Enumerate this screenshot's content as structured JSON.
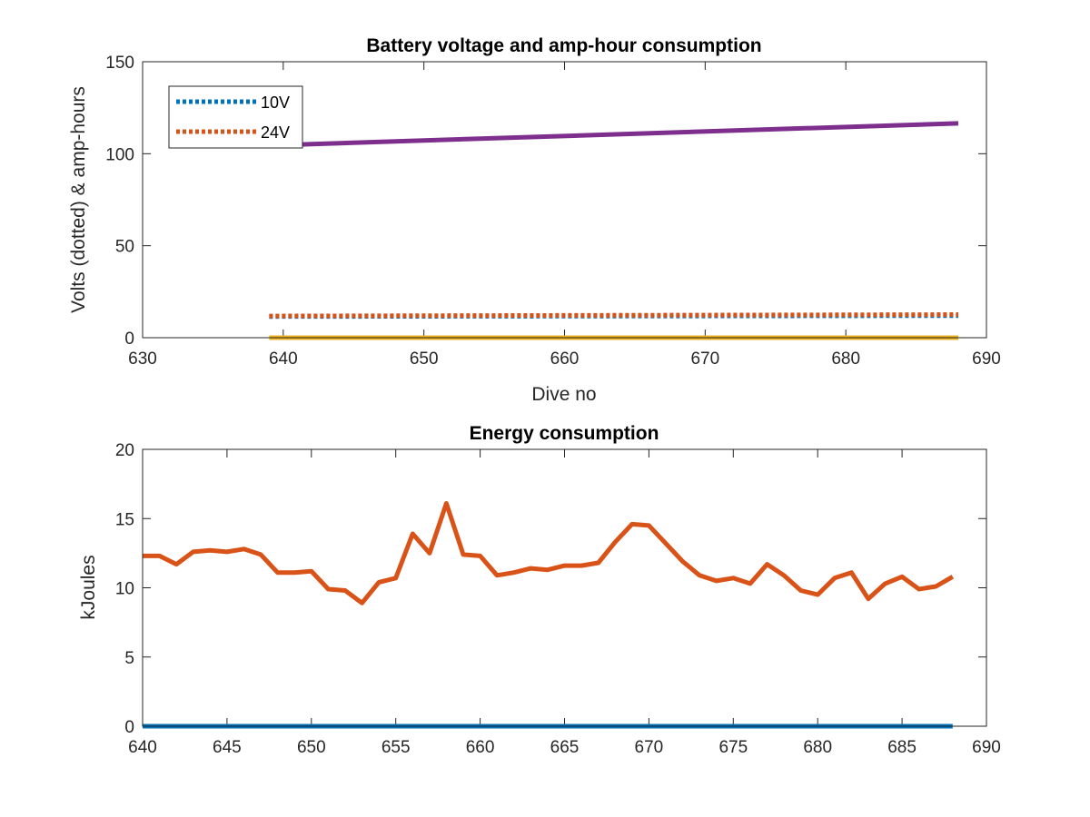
{
  "chart_data": [
    {
      "type": "line",
      "title": "Battery voltage and amp-hour consumption",
      "xlabel": "Dive no",
      "ylabel": "Volts (dotted) & amp-hours",
      "xlim": [
        630,
        690
      ],
      "ylim": [
        0,
        150
      ],
      "xticks": [
        630,
        640,
        650,
        660,
        670,
        680,
        690
      ],
      "yticks": [
        0,
        50,
        100,
        150
      ],
      "legend": {
        "position": "top-left",
        "entries": [
          "10V",
          "24V"
        ]
      },
      "series": [
        {
          "name": "10V",
          "color": "#0072BD",
          "style": "dotted",
          "x": [
            639,
            688
          ],
          "y": [
            11.5,
            12.0
          ]
        },
        {
          "name": "24V",
          "color": "#D95319",
          "style": "dotted",
          "x": [
            639,
            688
          ],
          "y": [
            11.8,
            12.6
          ]
        },
        {
          "color": "#EDB120",
          "style": "solid",
          "x": [
            639,
            688
          ],
          "y": [
            0,
            0
          ]
        },
        {
          "color": "#7E2F8E",
          "style": "solid",
          "x": [
            639,
            688
          ],
          "y": [
            104.5,
            116.5
          ]
        }
      ]
    },
    {
      "type": "line",
      "title": "Energy consumption",
      "xlabel": "",
      "ylabel": "kJoules",
      "xlim": [
        640,
        690
      ],
      "ylim": [
        0,
        20
      ],
      "xticks": [
        640,
        645,
        650,
        655,
        660,
        665,
        670,
        675,
        680,
        685,
        690
      ],
      "yticks": [
        0,
        5,
        10,
        15,
        20
      ],
      "series": [
        {
          "color": "#0072BD",
          "style": "solid",
          "x": [
            640,
            688
          ],
          "y": [
            0,
            0
          ]
        },
        {
          "color": "#D95319",
          "style": "solid",
          "x": [
            640,
            641,
            642,
            643,
            644,
            645,
            646,
            647,
            648,
            649,
            650,
            651,
            652,
            653,
            654,
            655,
            656,
            657,
            658,
            659,
            660,
            661,
            662,
            663,
            664,
            665,
            666,
            667,
            668,
            669,
            670,
            671,
            672,
            673,
            674,
            675,
            676,
            677,
            678,
            679,
            680,
            681,
            682,
            683,
            684,
            685,
            686,
            687,
            688
          ],
          "y": [
            12.3,
            12.3,
            11.7,
            12.6,
            12.7,
            12.6,
            12.8,
            12.4,
            11.1,
            11.1,
            11.2,
            9.9,
            9.8,
            8.9,
            10.4,
            10.7,
            13.9,
            12.5,
            16.1,
            12.4,
            12.3,
            10.9,
            11.1,
            11.4,
            11.3,
            11.6,
            11.6,
            11.8,
            13.3,
            14.6,
            14.5,
            13.2,
            11.9,
            10.9,
            10.5,
            10.7,
            10.3,
            11.7,
            10.9,
            9.8,
            9.5,
            10.7,
            11.1,
            9.2,
            10.3,
            10.8,
            9.9,
            10.1,
            10.8
          ]
        }
      ]
    }
  ]
}
